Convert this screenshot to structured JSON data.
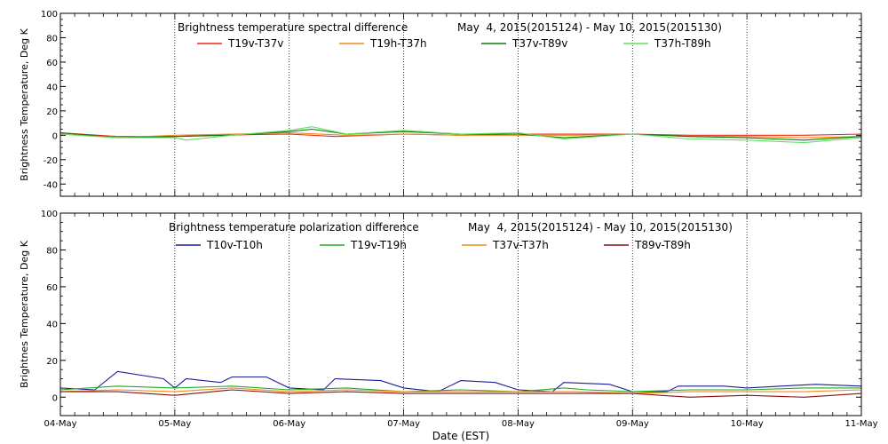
{
  "colors": {
    "red": "#e8281a",
    "orange": "#f08a1a",
    "darkgreen": "#0a7a0a",
    "lightgreen": "#60e060",
    "navy": "#1c1c9a",
    "green": "#22aa22",
    "darkred": "#8a1010"
  },
  "chart_data": [
    {
      "type": "line",
      "title": "Brightness temperature spectral difference",
      "date_range": "May  4, 2015(2015124) - May 10, 2015(2015130)",
      "xlabel": "",
      "ylabel": "Brightness Temperature, Deg K",
      "ylim": [
        -50,
        100
      ],
      "yticks": [
        "100",
        "80",
        "60",
        "40",
        "20",
        "0",
        "-20",
        "-40"
      ],
      "xlim": [
        "2015-05-04",
        "2015-05-11"
      ],
      "grid": "vertical dotted lines at each day",
      "legend": "top",
      "series": [
        {
          "name": "T19v-T37v",
          "color": "#e8281a",
          "points": [
            [
              0,
              2
            ],
            [
              0.5,
              -1
            ],
            [
              1,
              -1
            ],
            [
              1.3,
              0
            ],
            [
              2,
              1
            ],
            [
              2.4,
              -1
            ],
            [
              3,
              1
            ],
            [
              3.5,
              0
            ],
            [
              4,
              1
            ],
            [
              4.5,
              1
            ],
            [
              5,
              1
            ],
            [
              5.5,
              0
            ],
            [
              6,
              0
            ],
            [
              6.5,
              0
            ],
            [
              7,
              1
            ]
          ]
        },
        {
          "name": "T19h-T37h",
          "color": "#f08a1a",
          "points": [
            [
              0,
              1
            ],
            [
              0.5,
              -2
            ],
            [
              1,
              0
            ],
            [
              1.5,
              1
            ],
            [
              2,
              2
            ],
            [
              2.5,
              0
            ],
            [
              3,
              1
            ],
            [
              3.5,
              0
            ],
            [
              4,
              0
            ],
            [
              4.5,
              0
            ],
            [
              5,
              1
            ],
            [
              5.5,
              -1
            ],
            [
              6,
              -1
            ],
            [
              6.5,
              -2
            ],
            [
              7,
              -1
            ]
          ]
        },
        {
          "name": "T37v-T89v",
          "color": "#0a7a0a",
          "points": [
            [
              0,
              2
            ],
            [
              0.5,
              -2
            ],
            [
              1,
              -1
            ],
            [
              1.5,
              0
            ],
            [
              2,
              3
            ],
            [
              2.2,
              5
            ],
            [
              2.5,
              1
            ],
            [
              3,
              3
            ],
            [
              3.5,
              1
            ],
            [
              4,
              1
            ],
            [
              4.4,
              -2
            ],
            [
              5,
              1
            ],
            [
              5.5,
              -1
            ],
            [
              6,
              -2
            ],
            [
              6.5,
              -4
            ],
            [
              7,
              -1
            ]
          ]
        },
        {
          "name": "T37h-T89h",
          "color": "#60e060",
          "points": [
            [
              0,
              1
            ],
            [
              0.5,
              -2
            ],
            [
              1,
              -2
            ],
            [
              1.1,
              -4
            ],
            [
              1.5,
              0
            ],
            [
              2,
              4
            ],
            [
              2.2,
              7
            ],
            [
              2.5,
              1
            ],
            [
              3,
              4
            ],
            [
              3.5,
              1
            ],
            [
              4,
              2
            ],
            [
              4.4,
              -3
            ],
            [
              5,
              1
            ],
            [
              5.5,
              -3
            ],
            [
              6,
              -4
            ],
            [
              6.5,
              -6
            ],
            [
              7,
              -2
            ]
          ]
        }
      ]
    },
    {
      "type": "line",
      "title": "Brightness temperature polarization difference",
      "date_range": "May  4, 2015(2015124) - May 10, 2015(2015130)",
      "xlabel": "Date (EST)",
      "ylabel": "Brightnes Temperature, Deg K",
      "ylim": [
        -10,
        100
      ],
      "yticks": [
        "100",
        "80",
        "60",
        "40",
        "20",
        "0"
      ],
      "xlim": [
        "2015-05-04",
        "2015-05-11"
      ],
      "xticks": [
        "04-May",
        "05-May",
        "06-May",
        "07-May",
        "08-May",
        "09-May",
        "10-May",
        "11-May"
      ],
      "grid": "vertical dotted lines at each day",
      "legend": "top",
      "series": [
        {
          "name": "T10v-T10h",
          "color": "#1c1c9a",
          "points": [
            [
              0,
              5
            ],
            [
              0.3,
              4
            ],
            [
              0.5,
              14
            ],
            [
              0.9,
              10
            ],
            [
              1.0,
              5
            ],
            [
              1.1,
              10
            ],
            [
              1.4,
              8
            ],
            [
              1.5,
              11
            ],
            [
              1.8,
              11
            ],
            [
              2.0,
              5
            ],
            [
              2.3,
              4
            ],
            [
              2.4,
              10
            ],
            [
              2.8,
              9
            ],
            [
              3.0,
              5
            ],
            [
              3.3,
              3
            ],
            [
              3.5,
              9
            ],
            [
              3.8,
              8
            ],
            [
              4.0,
              4
            ],
            [
              4.3,
              3
            ],
            [
              4.4,
              8
            ],
            [
              4.8,
              7
            ],
            [
              5.0,
              3
            ],
            [
              5.3,
              3
            ],
            [
              5.4,
              6
            ],
            [
              5.8,
              6
            ],
            [
              6.0,
              5
            ],
            [
              6.3,
              6
            ],
            [
              6.6,
              7
            ],
            [
              7,
              6
            ]
          ]
        },
        {
          "name": "T19v-T19h",
          "color": "#22aa22",
          "points": [
            [
              0,
              4
            ],
            [
              0.5,
              6
            ],
            [
              1,
              5
            ],
            [
              1.5,
              6
            ],
            [
              2,
              4
            ],
            [
              2.5,
              5
            ],
            [
              3,
              3
            ],
            [
              3.5,
              4
            ],
            [
              4,
              3
            ],
            [
              4.4,
              5
            ],
            [
              4.6,
              4
            ],
            [
              5,
              3
            ],
            [
              5.5,
              4
            ],
            [
              6,
              4
            ],
            [
              6.5,
              5
            ],
            [
              7,
              5
            ]
          ]
        },
        {
          "name": "T37v-T37h",
          "color": "#f08a1a",
          "points": [
            [
              0,
              3
            ],
            [
              0.5,
              4
            ],
            [
              1,
              3
            ],
            [
              1.5,
              5
            ],
            [
              2,
              3
            ],
            [
              2.5,
              4
            ],
            [
              3,
              3
            ],
            [
              3.5,
              3
            ],
            [
              4,
              3
            ],
            [
              4.5,
              3
            ],
            [
              5,
              2
            ],
            [
              5.5,
              3
            ],
            [
              6,
              3
            ],
            [
              6.5,
              3
            ],
            [
              7,
              4
            ]
          ]
        },
        {
          "name": "T89v-T89h",
          "color": "#8a1010",
          "points": [
            [
              0,
              3
            ],
            [
              0.5,
              3
            ],
            [
              1,
              1
            ],
            [
              1.5,
              4
            ],
            [
              2,
              2
            ],
            [
              2.5,
              3
            ],
            [
              3,
              2
            ],
            [
              3.5,
              2
            ],
            [
              4,
              2
            ],
            [
              4.5,
              2
            ],
            [
              5,
              2
            ],
            [
              5.5,
              0
            ],
            [
              6,
              1
            ],
            [
              6.5,
              0
            ],
            [
              7,
              2
            ]
          ]
        }
      ]
    }
  ]
}
